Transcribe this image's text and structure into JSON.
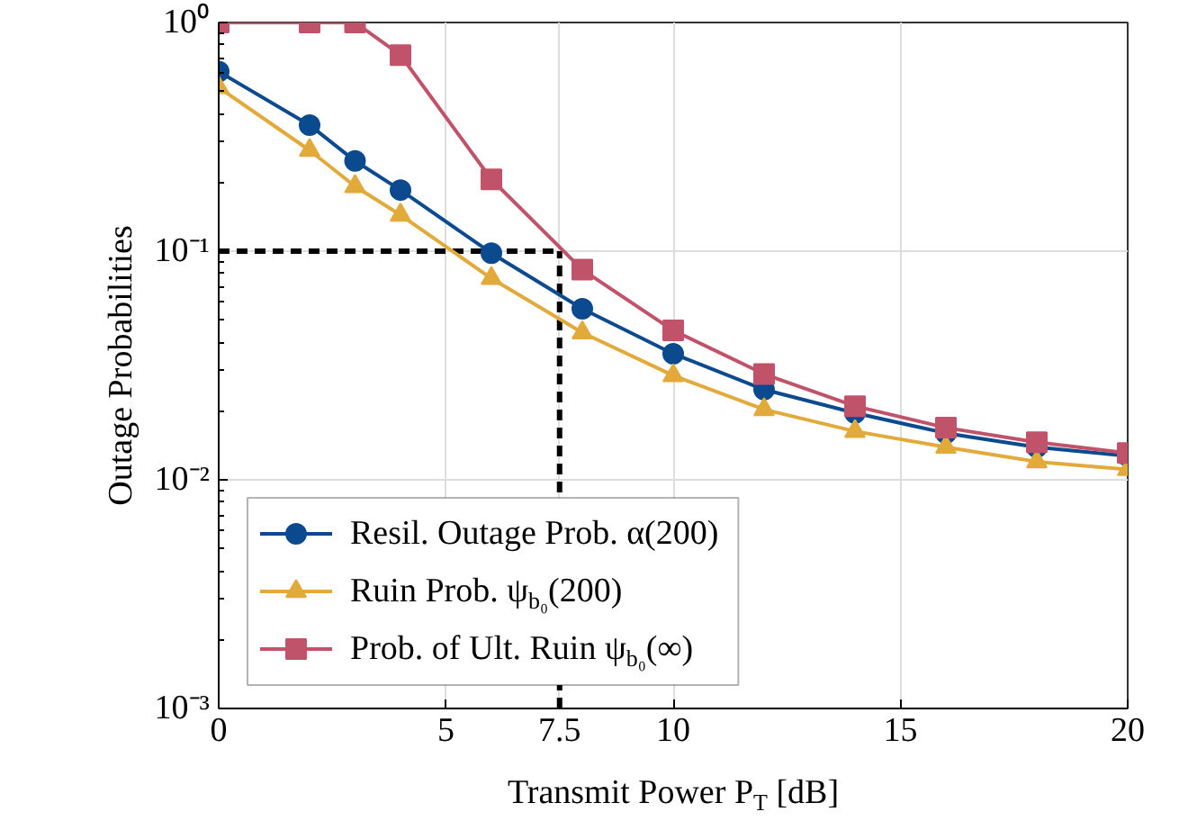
{
  "chart_data": {
    "type": "line",
    "xlabel": "Transmit Power P$_{T}$ [dB]",
    "ylabel": "Outage Probabilities",
    "x": [
      0,
      2,
      3,
      4,
      6,
      8,
      10,
      12,
      14,
      16,
      18,
      20
    ],
    "series": [
      {
        "name": "Resil. Outage Prob. α(200)",
        "color": "#0b4a8f",
        "marker": "circle",
        "values": [
          0.61,
          0.356,
          0.248,
          0.185,
          0.098,
          0.056,
          0.0356,
          0.0248,
          0.0196,
          0.016,
          0.0139,
          0.0127
        ]
      },
      {
        "name": "Ruin Prob. ψ$_{b₀}$(200)",
        "color": "#e2a93b",
        "marker": "triangle",
        "values": [
          0.52,
          0.276,
          0.192,
          0.144,
          0.076,
          0.044,
          0.0286,
          0.0203,
          0.0163,
          0.0139,
          0.012,
          0.0111
        ]
      },
      {
        "name": "Prob. of Ult. Ruin ψ$_{b₀}$(∞)",
        "color": "#c05369",
        "marker": "square",
        "values": [
          1.0,
          1.0,
          1.0,
          0.72,
          0.206,
          0.083,
          0.045,
          0.029,
          0.021,
          0.0169,
          0.0146,
          0.0131
        ]
      }
    ],
    "log": "y",
    "xlim": [
      0,
      20
    ],
    "ylim": [
      0.001,
      1
    ],
    "xticks": [
      0,
      5,
      7.5,
      10,
      15,
      20
    ],
    "yticks": [
      {
        "value": 0.001,
        "label": "10⁻³"
      },
      {
        "value": 0.01,
        "label": "10⁻²"
      },
      {
        "value": 0.1,
        "label": "10⁻¹"
      },
      {
        "value": 1,
        "label": "10⁰"
      }
    ],
    "grid": true,
    "legend": "bottom left",
    "line_style": "solid",
    "ref_lines": [
      {
        "axis": "y",
        "value": 0.1,
        "color": "#000000",
        "line_style": "dashed"
      },
      {
        "axis": "x",
        "value": 7.5,
        "color": "#000000",
        "line_style": "dashed"
      }
    ]
  }
}
